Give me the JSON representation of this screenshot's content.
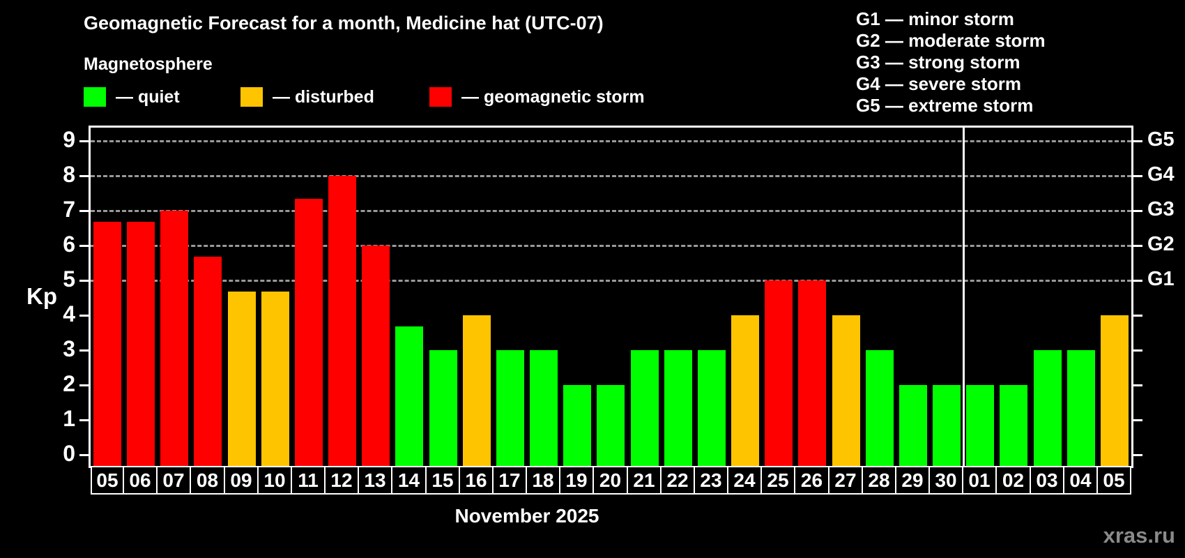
{
  "title": "Geomagnetic Forecast for a month, Medicine hat (UTC-07)",
  "legend": {
    "title": "Magnetosphere",
    "items": [
      {
        "name": "quiet",
        "label": "— quiet",
        "color": "#00ff00"
      },
      {
        "name": "disturbed",
        "label": "— disturbed",
        "color": "#ffc400"
      },
      {
        "name": "storm",
        "label": "— geomagnetic storm",
        "color": "#ff0000"
      }
    ]
  },
  "g_scale_legend": [
    "G1 — minor storm",
    "G2 — moderate storm",
    "G3 — strong storm",
    "G4 — severe storm",
    "G5 — extreme storm"
  ],
  "chart_data": {
    "type": "bar",
    "categories": [
      "05",
      "06",
      "07",
      "08",
      "09",
      "10",
      "11",
      "12",
      "13",
      "14",
      "15",
      "16",
      "17",
      "18",
      "19",
      "20",
      "21",
      "22",
      "23",
      "24",
      "25",
      "26",
      "27",
      "28",
      "29",
      "30",
      "01",
      "02",
      "03",
      "04",
      "05"
    ],
    "values": [
      6.67,
      6.67,
      7,
      5.67,
      4.67,
      4.67,
      7.33,
      8,
      6,
      3.67,
      3,
      4,
      3,
      3,
      2,
      2,
      3,
      3,
      3,
      4,
      5,
      5,
      4,
      3,
      2,
      2,
      2,
      2,
      3,
      3,
      4
    ],
    "title": "Geomagnetic Forecast for a month, Medicine hat (UTC-07)",
    "xlabel": "November 2025",
    "ylabel": "Kp",
    "ylim": [
      0,
      9
    ],
    "y_ticks": [
      0,
      1,
      2,
      3,
      4,
      5,
      6,
      7,
      8,
      9
    ],
    "grid_levels": [
      5,
      6,
      7,
      8,
      9
    ],
    "right_axis_labels": [
      {
        "level": 5,
        "label": "G1"
      },
      {
        "level": 6,
        "label": "G2"
      },
      {
        "level": 7,
        "label": "G3"
      },
      {
        "level": 8,
        "label": "G4"
      },
      {
        "level": 9,
        "label": "G5"
      }
    ],
    "month_separator_after_index": 25,
    "color_rules": {
      "storm_min": 5,
      "disturbed_min": 4,
      "quiet_color": "#00ff00",
      "disturbed_color": "#ffc400",
      "storm_color": "#ff0000"
    },
    "grid": true,
    "legend_position": "top-left"
  },
  "watermark": "xras.ru"
}
